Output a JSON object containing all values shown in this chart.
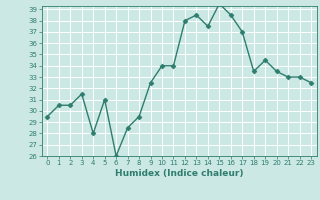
{
  "x": [
    0,
    1,
    2,
    3,
    4,
    5,
    6,
    7,
    8,
    9,
    10,
    11,
    12,
    13,
    14,
    15,
    16,
    17,
    18,
    19,
    20,
    21,
    22,
    23
  ],
  "y": [
    29.5,
    30.5,
    30.5,
    31.5,
    28.0,
    31.0,
    26.0,
    28.5,
    29.5,
    32.5,
    34.0,
    34.0,
    38.0,
    38.5,
    37.5,
    39.5,
    38.5,
    37.0,
    33.5,
    34.5,
    33.5,
    33.0,
    33.0,
    32.5
  ],
  "xlabel": "Humidex (Indice chaleur)",
  "ylim": [
    26,
    39
  ],
  "xlim": [
    -0.5,
    23.5
  ],
  "yticks": [
    26,
    27,
    28,
    29,
    30,
    31,
    32,
    33,
    34,
    35,
    36,
    37,
    38,
    39
  ],
  "xticks": [
    0,
    1,
    2,
    3,
    4,
    5,
    6,
    7,
    8,
    9,
    10,
    11,
    12,
    13,
    14,
    15,
    16,
    17,
    18,
    19,
    20,
    21,
    22,
    23
  ],
  "line_color": "#2e7d6e",
  "bg_color": "#cce8e4",
  "grid_color": "#ffffff",
  "tick_color": "#2e7d6e",
  "label_color": "#2e7d6e",
  "marker": "D",
  "markersize": 2.5,
  "linewidth": 1.0
}
